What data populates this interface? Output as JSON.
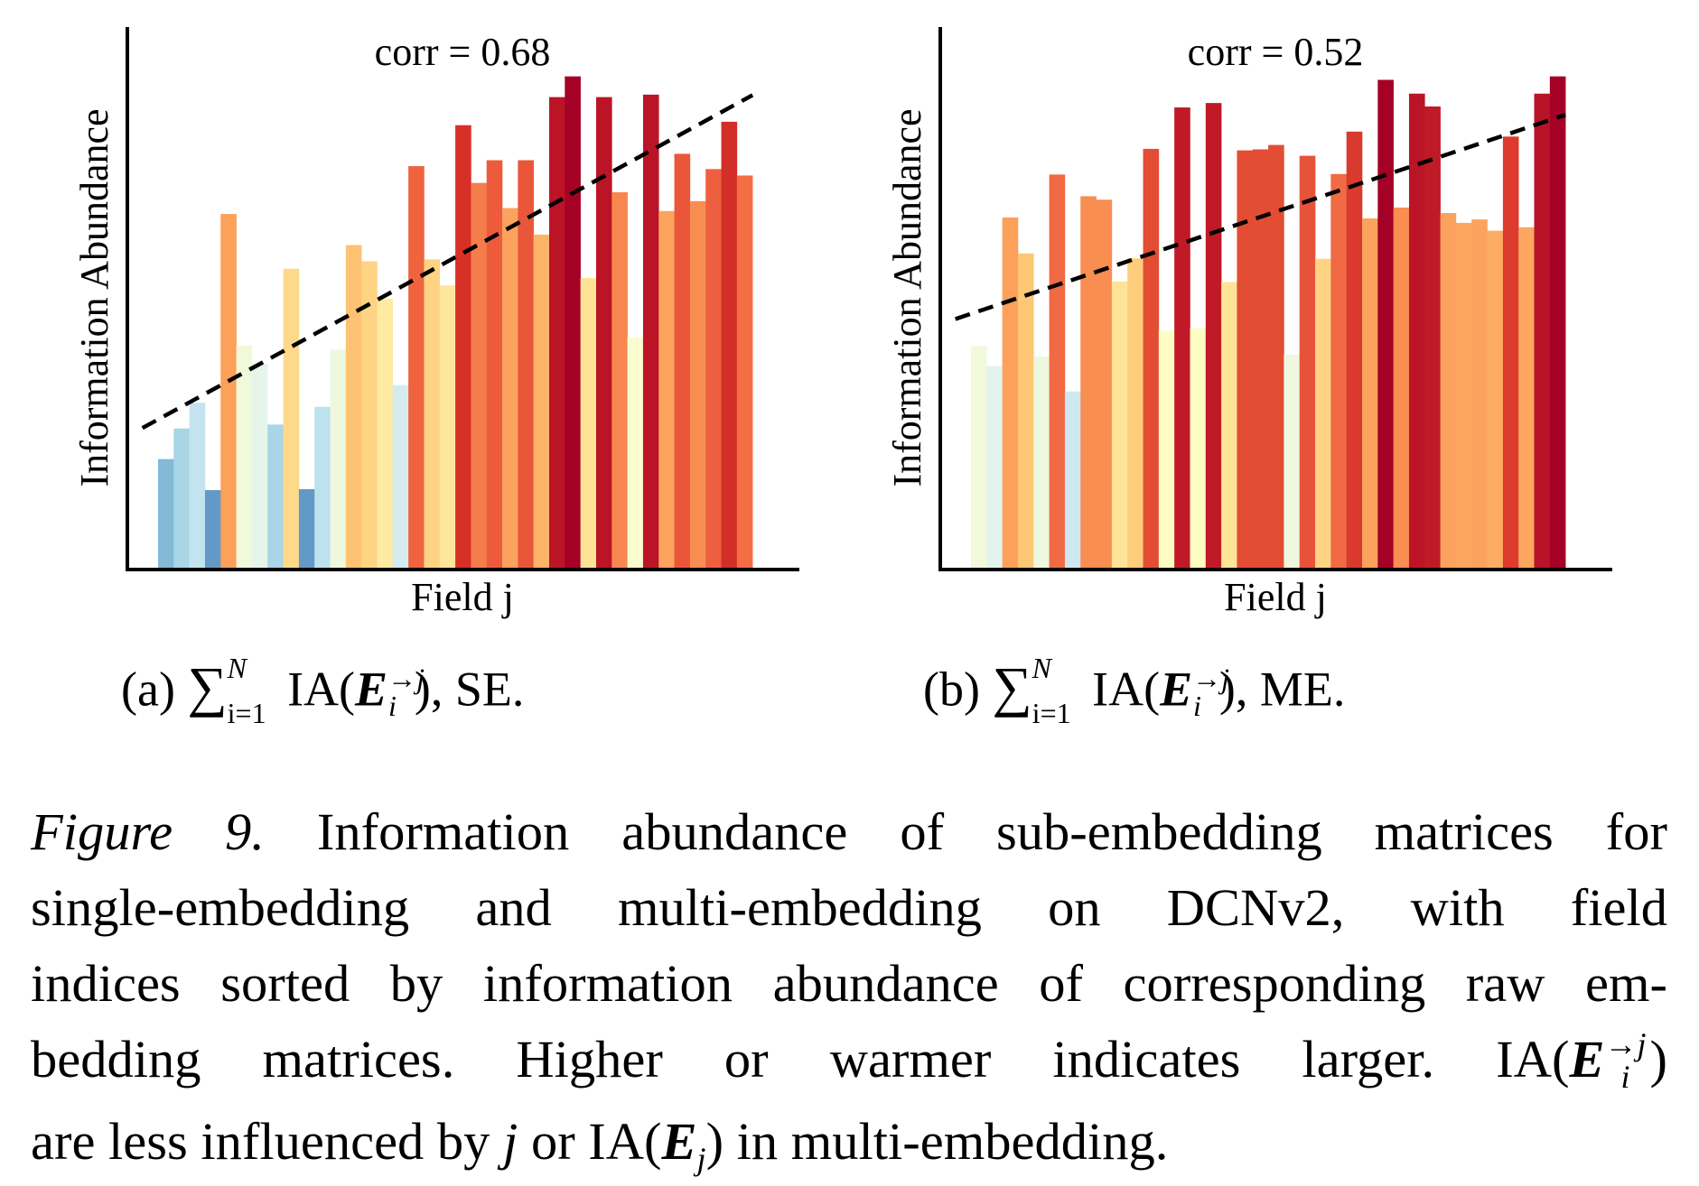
{
  "chart_data": [
    {
      "type": "bar",
      "panel": "a",
      "annotation": "corr = 0.68",
      "xlabel": "Field j",
      "ylabel": "Information Abundance",
      "ylim": [
        0,
        110
      ],
      "ticks": "none",
      "grid": false,
      "categories_note": "38 fields, sorted by information abundance of raw embedding matrices",
      "values": [
        22.4,
        28.6,
        33.8,
        16.1,
        72.1,
        45.4,
        41.8,
        29.4,
        61.0,
        16.3,
        33.0,
        44.6,
        65.8,
        62.5,
        54.9,
        37.4,
        81.8,
        62.9,
        57.6,
        90.1,
        78.4,
        83.0,
        73.3,
        83.0,
        67.9,
        95.8,
        100.0,
        59.1,
        95.8,
        76.5,
        47.1,
        96.3,
        72.7,
        84.3,
        74.7,
        81.2,
        90.8,
        79.9
      ],
      "colors": [
        "#84b9d8",
        "#a9d5e7",
        "#c3e3ef",
        "#6399c7",
        "#fca05a",
        "#f0f9da",
        "#e6f5ea",
        "#a9d5e7",
        "#fed98a",
        "#6399c7",
        "#bde2ee",
        "#edf8df",
        "#fdc273",
        "#fed384",
        "#feeaa0",
        "#d4ebf2",
        "#ef633f",
        "#fed384",
        "#fee79b",
        "#d73027",
        "#f57d4b",
        "#ee5b3c",
        "#fba35e",
        "#ea563a",
        "#fdb468",
        "#bb1427",
        "#a50026",
        "#fee396",
        "#bb1427",
        "#f8864f",
        "#fbfbd0",
        "#bb1427",
        "#fca35e",
        "#ea563a",
        "#f98e52",
        "#ee5f3f",
        "#d32e28",
        "#f46d43"
      ],
      "trend": {
        "style": "dashed",
        "x_start": -1.5,
        "y_start": 28.7,
        "x_end": 37.5,
        "y_end": 96.2
      }
    },
    {
      "type": "bar",
      "panel": "b",
      "annotation": "corr = 0.52",
      "xlabel": "Field j",
      "ylabel": "Information Abundance",
      "ylim": [
        0,
        110
      ],
      "ticks": "none",
      "grid": false,
      "categories_note": "38 fields, sorted by information abundance of raw embedding matrices",
      "values": [
        45.3,
        41.3,
        71.4,
        64.1,
        43.2,
        80.1,
        36.1,
        75.7,
        75.0,
        58.4,
        63.1,
        85.3,
        48.4,
        93.7,
        48.9,
        94.6,
        58.3,
        85.0,
        85.2,
        86.1,
        43.6,
        83.9,
        63.0,
        80.2,
        88.8,
        71.2,
        99.3,
        73.4,
        96.5,
        93.9,
        72.3,
        70.3,
        71.0,
        68.7,
        87.8,
        69.4,
        96.5,
        100.0
      ],
      "colors": [
        "#f0f9da",
        "#e3f4ee",
        "#fca05a",
        "#fdc776",
        "#edf8df",
        "#f06a44",
        "#cde8f1",
        "#f98e52",
        "#f98e52",
        "#fee496",
        "#fdcd7b",
        "#e34d34",
        "#fdfcc2",
        "#c01a27",
        "#fdfcc2",
        "#c01a27",
        "#fee496",
        "#e34d34",
        "#e34d34",
        "#e34d34",
        "#edf8df",
        "#e7533a",
        "#fed384",
        "#f06a44",
        "#d93a2d",
        "#fba35e",
        "#a50026",
        "#f98e52",
        "#bb1427",
        "#c01a27",
        "#fba35e",
        "#fca65f",
        "#fba35e",
        "#fdac63",
        "#dc3b2d",
        "#fca65f",
        "#b81328",
        "#a50026"
      ],
      "trend": {
        "style": "dashed",
        "x_start": -1.5,
        "y_start": 50.8,
        "x_end": 37.5,
        "y_end": 92.2
      }
    }
  ],
  "subcaptions": {
    "a": {
      "label": "(a)",
      "sum_symbol": "∑",
      "upper": "N",
      "lower": "i=1",
      "func": "IA(",
      "var": "E",
      "var_sup": "→j",
      "var_sub": "i",
      "close": "),",
      "suffix": "SE."
    },
    "b": {
      "label": "(b)",
      "sum_symbol": "∑",
      "upper": "N",
      "lower": "i=1",
      "func": "IA(",
      "var": "E",
      "var_sup": "→j",
      "var_sub": "i",
      "close": "),",
      "suffix": "ME."
    }
  },
  "caption": {
    "figure_label": "Figure 9.",
    "line1": "Information abundance of sub-embedding matrices for",
    "line2": "single-embedding and multi-embedding on DCNv2, with field",
    "line3": "indices sorted by information abundance of corresponding raw em-",
    "line4_text": "bedding matrices. Higher or warmer indicates larger.",
    "line4_func": "IA(",
    "line4_var": "E",
    "line4_sup": "→j",
    "line4_sub": "i",
    "line4_close": ")",
    "line5_pre": "are less influenced by",
    "line5_j": "j",
    "line5_or": "or IA(",
    "line5_var": "E",
    "line5_sub": "j",
    "line5_post": ") in multi-embedding."
  }
}
